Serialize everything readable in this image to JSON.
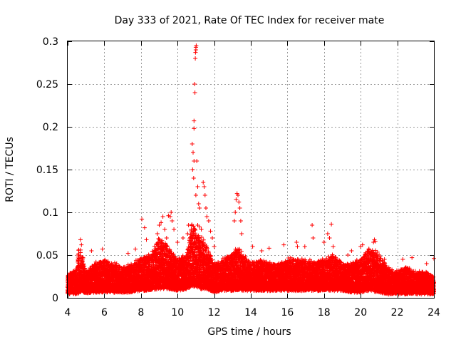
{
  "chart_data": {
    "type": "scatter",
    "title": "Day 333 of 2021, Rate Of TEC Index for receiver mate",
    "xlabel": "GPS time / hours",
    "ylabel": "ROTI / TECUs",
    "xlim": [
      4,
      24
    ],
    "ylim": [
      0,
      0.3
    ],
    "grid": true,
    "marker": "+",
    "color": "#ff0000",
    "xticks": [
      {
        "value": 4,
        "label": "4"
      },
      {
        "value": 6,
        "label": "6"
      },
      {
        "value": 8,
        "label": "8"
      },
      {
        "value": 10,
        "label": "10"
      },
      {
        "value": 12,
        "label": "12"
      },
      {
        "value": 14,
        "label": "14"
      },
      {
        "value": 16,
        "label": "16"
      },
      {
        "value": 18,
        "label": "18"
      },
      {
        "value": 20,
        "label": "20"
      },
      {
        "value": 22,
        "label": "22"
      },
      {
        "value": 24,
        "label": "24"
      }
    ],
    "yticks": [
      {
        "value": 0,
        "label": "0"
      },
      {
        "value": 0.05,
        "label": "0.05"
      },
      {
        "value": 0.1,
        "label": "0.1"
      },
      {
        "value": 0.15,
        "label": "0.15"
      },
      {
        "value": 0.2,
        "label": "0.2"
      },
      {
        "value": 0.25,
        "label": "0.25"
      },
      {
        "value": 0.3,
        "label": "0.3"
      }
    ],
    "series": [
      {
        "name": "ROTI",
        "envelope": {
          "hours": [
            4,
            4.5,
            4.6,
            4.8,
            5,
            5.5,
            6,
            6.5,
            7,
            7.5,
            8,
            8.5,
            9,
            9.5,
            10,
            10.5,
            10.8,
            11,
            11.3,
            11.6,
            12,
            12.5,
            13,
            13.3,
            13.6,
            14,
            14.5,
            15,
            15.5,
            16,
            16.5,
            17,
            17.5,
            18,
            18.5,
            19,
            19.5,
            20,
            20.5,
            21,
            21.5,
            22,
            22.5,
            23,
            23.5,
            24
          ],
          "typical_max": [
            0.025,
            0.035,
            0.06,
            0.05,
            0.03,
            0.04,
            0.045,
            0.04,
            0.035,
            0.04,
            0.045,
            0.05,
            0.07,
            0.06,
            0.045,
            0.05,
            0.09,
            0.08,
            0.07,
            0.06,
            0.04,
            0.045,
            0.05,
            0.06,
            0.05,
            0.04,
            0.045,
            0.04,
            0.04,
            0.045,
            0.045,
            0.045,
            0.04,
            0.045,
            0.05,
            0.04,
            0.04,
            0.045,
            0.06,
            0.05,
            0.035,
            0.03,
            0.035,
            0.03,
            0.03,
            0.025
          ],
          "floor": [
            0.006,
            0.006,
            0.007,
            0.008,
            0.007,
            0.008,
            0.008,
            0.008,
            0.008,
            0.008,
            0.01,
            0.01,
            0.012,
            0.012,
            0.01,
            0.012,
            0.015,
            0.014,
            0.012,
            0.012,
            0.008,
            0.01,
            0.01,
            0.01,
            0.01,
            0.01,
            0.01,
            0.01,
            0.01,
            0.01,
            0.01,
            0.01,
            0.01,
            0.01,
            0.01,
            0.01,
            0.008,
            0.008,
            0.01,
            0.008,
            0.006,
            0.006,
            0.006,
            0.006,
            0.006,
            0.006
          ]
        },
        "outliers": [
          [
            4.7,
            0.068
          ],
          [
            4.75,
            0.062
          ],
          [
            5.3,
            0.055
          ],
          [
            5.9,
            0.057
          ],
          [
            7.3,
            0.052
          ],
          [
            7.7,
            0.057
          ],
          [
            8.05,
            0.092
          ],
          [
            8.2,
            0.082
          ],
          [
            8.3,
            0.068
          ],
          [
            8.9,
            0.075
          ],
          [
            9.0,
            0.085
          ],
          [
            9.1,
            0.088
          ],
          [
            9.2,
            0.095
          ],
          [
            9.3,
            0.08
          ],
          [
            9.4,
            0.07
          ],
          [
            9.5,
            0.096
          ],
          [
            9.6,
            0.095
          ],
          [
            9.65,
            0.1
          ],
          [
            9.7,
            0.09
          ],
          [
            9.8,
            0.08
          ],
          [
            10.0,
            0.065
          ],
          [
            10.3,
            0.07
          ],
          [
            10.55,
            0.075
          ],
          [
            10.6,
            0.085
          ],
          [
            10.8,
            0.18
          ],
          [
            10.85,
            0.17
          ],
          [
            10.9,
            0.16
          ],
          [
            10.82,
            0.15
          ],
          [
            10.88,
            0.14
          ],
          [
            10.9,
            0.207
          ],
          [
            10.9,
            0.198
          ],
          [
            10.93,
            0.25
          ],
          [
            10.95,
            0.24
          ],
          [
            10.97,
            0.28
          ],
          [
            10.98,
            0.287
          ],
          [
            11.0,
            0.29
          ],
          [
            11.0,
            0.293
          ],
          [
            11.02,
            0.295
          ],
          [
            11.05,
            0.16
          ],
          [
            11.1,
            0.13
          ],
          [
            11.0,
            0.12
          ],
          [
            11.15,
            0.11
          ],
          [
            11.2,
            0.105
          ],
          [
            11.1,
            0.085
          ],
          [
            11.2,
            0.083
          ],
          [
            11.3,
            0.08
          ],
          [
            11.4,
            0.135
          ],
          [
            11.45,
            0.13
          ],
          [
            11.5,
            0.12
          ],
          [
            11.55,
            0.105
          ],
          [
            11.6,
            0.095
          ],
          [
            11.7,
            0.09
          ],
          [
            11.8,
            0.078
          ],
          [
            11.9,
            0.07
          ],
          [
            12.0,
            0.06
          ],
          [
            13.1,
            0.09
          ],
          [
            13.15,
            0.1
          ],
          [
            13.2,
            0.115
          ],
          [
            13.25,
            0.122
          ],
          [
            13.3,
            0.12
          ],
          [
            13.35,
            0.112
          ],
          [
            13.4,
            0.105
          ],
          [
            13.45,
            0.09
          ],
          [
            13.5,
            0.075
          ],
          [
            14.1,
            0.06
          ],
          [
            14.6,
            0.055
          ],
          [
            15.0,
            0.058
          ],
          [
            15.8,
            0.062
          ],
          [
            16.5,
            0.065
          ],
          [
            16.55,
            0.06
          ],
          [
            16.95,
            0.06
          ],
          [
            17.35,
            0.085
          ],
          [
            17.4,
            0.07
          ],
          [
            18.0,
            0.065
          ],
          [
            18.2,
            0.075
          ],
          [
            18.3,
            0.07
          ],
          [
            18.4,
            0.086
          ],
          [
            18.5,
            0.06
          ],
          [
            19.3,
            0.05
          ],
          [
            19.5,
            0.055
          ],
          [
            20.0,
            0.06
          ],
          [
            20.1,
            0.062
          ],
          [
            20.7,
            0.065
          ],
          [
            20.75,
            0.068
          ],
          [
            20.8,
            0.066
          ],
          [
            21.3,
            0.045
          ],
          [
            22.3,
            0.045
          ],
          [
            22.8,
            0.047
          ],
          [
            23.6,
            0.04
          ],
          [
            24.0,
            0.046
          ]
        ]
      }
    ]
  }
}
